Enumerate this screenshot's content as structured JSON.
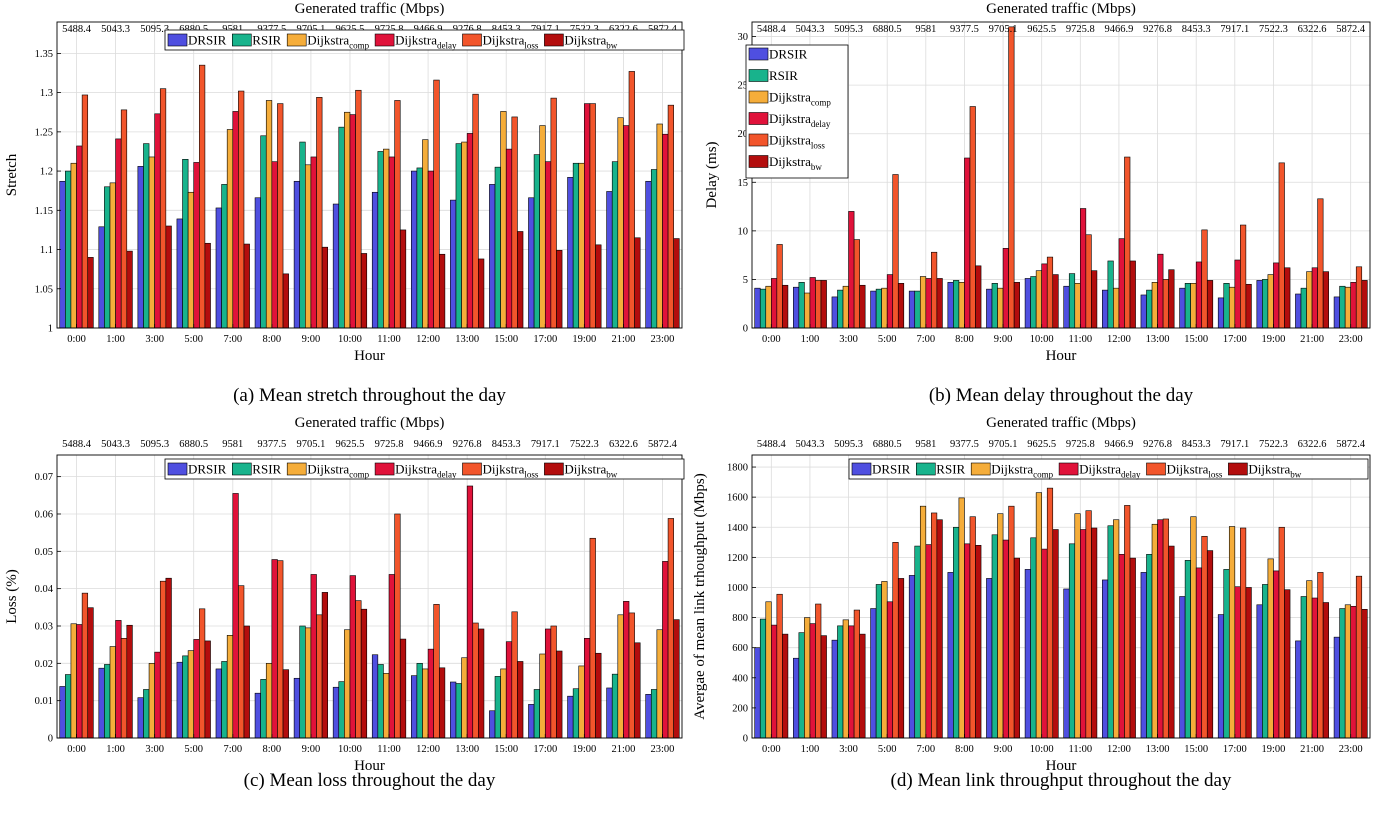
{
  "colors": {
    "DRSIR": "#4f4fe0",
    "RSIR": "#18b38c",
    "Dijkstra_comp": "#f5ad3a",
    "Dijkstra_delay": "#e0123a",
    "Dijkstra_loss": "#f2552b",
    "Dijkstra_bw": "#b30d0d",
    "grid": "#dcdcdc"
  },
  "series_labels": [
    {
      "key": "DRSIR",
      "base": "DRSIR",
      "sub": ""
    },
    {
      "key": "RSIR",
      "base": "RSIR",
      "sub": ""
    },
    {
      "key": "Dijkstra_comp",
      "base": "Dijkstra",
      "sub": "comp"
    },
    {
      "key": "Dijkstra_delay",
      "base": "Dijkstra",
      "sub": "delay"
    },
    {
      "key": "Dijkstra_loss",
      "base": "Dijkstra",
      "sub": "loss"
    },
    {
      "key": "Dijkstra_bw",
      "base": "Dijkstra",
      "sub": "bw"
    }
  ],
  "chart_data": [
    {
      "type": "bar",
      "caption": "(a) Mean stretch throughout the day",
      "top_label": "Generated traffic (Mbps)",
      "top_ticks": [
        "5488.4",
        "5043.3",
        "5095.3",
        "6880.5",
        "9581",
        "9377.5",
        "9705.1",
        "9625.5",
        "9725.8",
        "9466.9",
        "9276.8",
        "8453.3",
        "7917.1",
        "7522.3",
        "6322.6",
        "5872.4"
      ],
      "categories": [
        "0:00",
        "1:00",
        "3:00",
        "5:00",
        "7:00",
        "8:00",
        "9:00",
        "10:00",
        "11:00",
        "12:00",
        "13:00",
        "15:00",
        "17:00",
        "19:00",
        "21:00",
        "23:00"
      ],
      "xlabel": "Hour",
      "ylabel": "Stretch",
      "ylim": [
        1,
        1.39
      ],
      "yticks": [
        "1",
        "1.05",
        "1.1",
        "1.15",
        "1.2",
        "1.25",
        "1.3",
        "1.35"
      ],
      "legend": "top-right-row",
      "grid": true,
      "series": [
        {
          "name": "DRSIR",
          "values": [
            1.187,
            1.129,
            1.206,
            1.139,
            1.153,
            1.166,
            1.187,
            1.158,
            1.173,
            1.2,
            1.163,
            1.183,
            1.166,
            1.192,
            1.174,
            1.187
          ]
        },
        {
          "name": "RSIR",
          "values": [
            1.2,
            1.18,
            1.235,
            1.215,
            1.183,
            1.245,
            1.237,
            1.256,
            1.225,
            1.204,
            1.235,
            1.205,
            1.221,
            1.21,
            1.212,
            1.202
          ]
        },
        {
          "name": "Dijkstra_comp",
          "values": [
            1.21,
            1.185,
            1.218,
            1.173,
            1.253,
            1.29,
            1.208,
            1.275,
            1.228,
            1.24,
            1.237,
            1.276,
            1.258,
            1.21,
            1.268,
            1.26
          ]
        },
        {
          "name": "Dijkstra_delay",
          "values": [
            1.232,
            1.241,
            1.273,
            1.211,
            1.276,
            1.212,
            1.218,
            1.272,
            1.218,
            1.2,
            1.248,
            1.228,
            1.212,
            1.286,
            1.258,
            1.247
          ]
        },
        {
          "name": "Dijkstra_loss",
          "values": [
            1.297,
            1.278,
            1.305,
            1.335,
            1.302,
            1.286,
            1.294,
            1.303,
            1.29,
            1.316,
            1.298,
            1.269,
            1.293,
            1.286,
            1.327,
            1.284
          ]
        },
        {
          "name": "Dijkstra_bw",
          "values": [
            1.09,
            1.098,
            1.13,
            1.108,
            1.107,
            1.069,
            1.103,
            1.095,
            1.125,
            1.094,
            1.088,
            1.123,
            1.099,
            1.106,
            1.115,
            1.114
          ]
        }
      ]
    },
    {
      "type": "bar",
      "caption": "(b) Mean delay throughout the day",
      "top_label": "Generated traffic (Mbps)",
      "top_ticks": [
        "5488.4",
        "5043.3",
        "5095.3",
        "6880.5",
        "9581",
        "9377.5",
        "9705.1",
        "9625.5",
        "9725.8",
        "9466.9",
        "9276.8",
        "8453.3",
        "7917.1",
        "7522.3",
        "6322.6",
        "5872.4"
      ],
      "categories": [
        "0:00",
        "1:00",
        "3:00",
        "5:00",
        "7:00",
        "8:00",
        "9:00",
        "10:00",
        "11:00",
        "12:00",
        "13:00",
        "15:00",
        "17:00",
        "19:00",
        "21:00",
        "23:00"
      ],
      "xlabel": "Hour",
      "ylabel": "Delay (ms)",
      "ylim": [
        0,
        31.5
      ],
      "yticks": [
        "0",
        "5",
        "10",
        "15",
        "20",
        "25",
        "30"
      ],
      "legend": "top-left-column",
      "grid": true,
      "series": [
        {
          "name": "DRSIR",
          "values": [
            4.1,
            4.2,
            3.2,
            3.8,
            3.8,
            4.7,
            4.0,
            5.1,
            4.3,
            3.9,
            3.4,
            4.1,
            3.1,
            4.9,
            3.5,
            3.2
          ]
        },
        {
          "name": "RSIR",
          "values": [
            4.0,
            4.7,
            3.9,
            4.0,
            3.8,
            4.9,
            4.6,
            5.3,
            5.6,
            6.9,
            3.9,
            4.6,
            4.6,
            5.0,
            4.1,
            4.3
          ]
        },
        {
          "name": "Dijkstra_comp",
          "values": [
            4.3,
            3.6,
            4.3,
            4.1,
            5.3,
            4.7,
            4.1,
            5.9,
            4.6,
            4.1,
            4.7,
            4.6,
            4.2,
            5.5,
            5.8,
            4.2
          ]
        },
        {
          "name": "Dijkstra_delay",
          "values": [
            5.1,
            5.2,
            12.0,
            5.5,
            5.1,
            17.5,
            8.2,
            6.6,
            12.3,
            9.2,
            7.6,
            6.8,
            7.0,
            6.7,
            6.2,
            4.7
          ]
        },
        {
          "name": "Dijkstra_loss",
          "values": [
            8.6,
            4.9,
            9.1,
            15.8,
            7.8,
            22.8,
            31.0,
            7.3,
            9.6,
            17.6,
            5.0,
            10.1,
            10.6,
            17.0,
            13.3,
            6.3
          ]
        },
        {
          "name": "Dijkstra_bw",
          "values": [
            4.4,
            4.9,
            4.4,
            4.6,
            5.1,
            6.4,
            4.7,
            5.5,
            5.9,
            6.9,
            6.0,
            4.9,
            4.5,
            6.2,
            5.8,
            4.9
          ]
        }
      ]
    },
    {
      "type": "bar",
      "caption": "(c) Mean loss throughout the day",
      "top_label": "Generated traffic (Mbps)",
      "top_ticks": [
        "5488.4",
        "5043.3",
        "5095.3",
        "6880.5",
        "9581",
        "9377.5",
        "9705.1",
        "9625.5",
        "9725.8",
        "9466.9",
        "9276.8",
        "8453.3",
        "7917.1",
        "7522.3",
        "6322.6",
        "5872.4"
      ],
      "categories": [
        "0:00",
        "1:00",
        "3:00",
        "5:00",
        "7:00",
        "8:00",
        "9:00",
        "10:00",
        "11:00",
        "12:00",
        "13:00",
        "15:00",
        "17:00",
        "19:00",
        "21:00",
        "23:00"
      ],
      "xlabel": "Hour",
      "ylabel": "Loss (%)",
      "ylim": [
        0,
        0.0758
      ],
      "yticks": [
        "0",
        "0.01",
        "0.02",
        "0.03",
        "0.04",
        "0.05",
        "0.06",
        "0.07"
      ],
      "legend": "top-right-row",
      "grid": true,
      "series": [
        {
          "name": "DRSIR",
          "values": [
            0.0138,
            0.0187,
            0.0108,
            0.0203,
            0.0185,
            0.012,
            0.016,
            0.0136,
            0.0223,
            0.0167,
            0.015,
            0.0073,
            0.009,
            0.0112,
            0.0134,
            0.0117
          ]
        },
        {
          "name": "RSIR",
          "values": [
            0.017,
            0.0197,
            0.013,
            0.022,
            0.0205,
            0.0157,
            0.03,
            0.0151,
            0.0197,
            0.02,
            0.0146,
            0.0165,
            0.013,
            0.0132,
            0.0171,
            0.013
          ]
        },
        {
          "name": "Dijkstra_comp",
          "values": [
            0.0306,
            0.0245,
            0.02,
            0.0234,
            0.0275,
            0.02,
            0.0295,
            0.029,
            0.0173,
            0.0185,
            0.0215,
            0.0185,
            0.0225,
            0.0193,
            0.033,
            0.029
          ]
        },
        {
          "name": "Dijkstra_delay",
          "values": [
            0.0304,
            0.0315,
            0.023,
            0.0264,
            0.0655,
            0.0478,
            0.0438,
            0.0435,
            0.0438,
            0.0238,
            0.0675,
            0.0258,
            0.0292,
            0.0267,
            0.0366,
            0.0473
          ]
        },
        {
          "name": "Dijkstra_loss",
          "values": [
            0.0388,
            0.0267,
            0.042,
            0.0346,
            0.0408,
            0.0475,
            0.033,
            0.0368,
            0.06,
            0.0358,
            0.0308,
            0.0338,
            0.03,
            0.0535,
            0.0335,
            0.0588
          ]
        },
        {
          "name": "Dijkstra_bw",
          "values": [
            0.0349,
            0.0302,
            0.0428,
            0.026,
            0.03,
            0.0183,
            0.039,
            0.0345,
            0.0265,
            0.0188,
            0.0292,
            0.0205,
            0.0233,
            0.0227,
            0.0255,
            0.0317
          ]
        }
      ]
    },
    {
      "type": "bar",
      "caption": "(d) Mean link throughput throughout the day",
      "top_label": "Generated traffic (Mbps)",
      "top_ticks": [
        "5488.4",
        "5043.3",
        "5095.3",
        "6880.5",
        "9581",
        "9377.5",
        "9705.1",
        "9625.5",
        "9725.8",
        "9466.9",
        "9276.8",
        "8453.3",
        "7917.1",
        "7522.3",
        "6322.6",
        "5872.4"
      ],
      "categories": [
        "0:00",
        "1:00",
        "3:00",
        "5:00",
        "7:00",
        "8:00",
        "9:00",
        "10:00",
        "11:00",
        "12:00",
        "13:00",
        "15:00",
        "17:00",
        "19:00",
        "21:00",
        "23:00"
      ],
      "xlabel": "Hour",
      "ylabel": "Avergae of mean link trhoughput (Mbps)",
      "ylim": [
        0,
        1880
      ],
      "yticks": [
        "0",
        "200",
        "400",
        "600",
        "800",
        "1000",
        "1200",
        "1400",
        "1600",
        "1800"
      ],
      "legend": "top-right-row",
      "grid": true,
      "series": [
        {
          "name": "DRSIR",
          "values": [
            600,
            530,
            650,
            860,
            1080,
            1100,
            1060,
            1120,
            990,
            1050,
            1100,
            940,
            820,
            885,
            645,
            670
          ]
        },
        {
          "name": "RSIR",
          "values": [
            790,
            700,
            745,
            1020,
            1275,
            1400,
            1350,
            1330,
            1290,
            1410,
            1220,
            1180,
            1120,
            1020,
            940,
            860
          ]
        },
        {
          "name": "Dijkstra_comp",
          "values": [
            905,
            800,
            785,
            1040,
            1540,
            1595,
            1490,
            1630,
            1490,
            1450,
            1420,
            1470,
            1405,
            1190,
            1045,
            885
          ]
        },
        {
          "name": "Dijkstra_delay",
          "values": [
            750,
            760,
            745,
            905,
            1285,
            1290,
            1315,
            1255,
            1385,
            1220,
            1450,
            1130,
            1005,
            1110,
            930,
            875
          ]
        },
        {
          "name": "Dijkstra_loss",
          "values": [
            955,
            890,
            850,
            1300,
            1495,
            1470,
            1540,
            1660,
            1510,
            1545,
            1455,
            1340,
            1395,
            1400,
            1100,
            1075
          ]
        },
        {
          "name": "Dijkstra_bw",
          "values": [
            690,
            680,
            690,
            1060,
            1450,
            1280,
            1195,
            1385,
            1395,
            1195,
            1275,
            1245,
            1000,
            985,
            900,
            855
          ]
        }
      ]
    }
  ]
}
